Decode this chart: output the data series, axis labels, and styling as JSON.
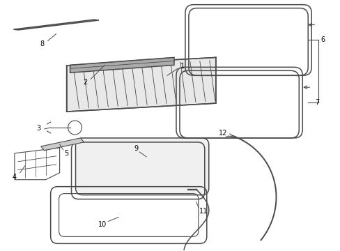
{
  "background_color": "#ffffff",
  "line_color": "#4a4a4a",
  "label_color": "#000000",
  "figsize": [
    4.89,
    3.6
  ],
  "dpi": 100,
  "xlim": [
    0,
    489
  ],
  "ylim": [
    0,
    360
  ]
}
